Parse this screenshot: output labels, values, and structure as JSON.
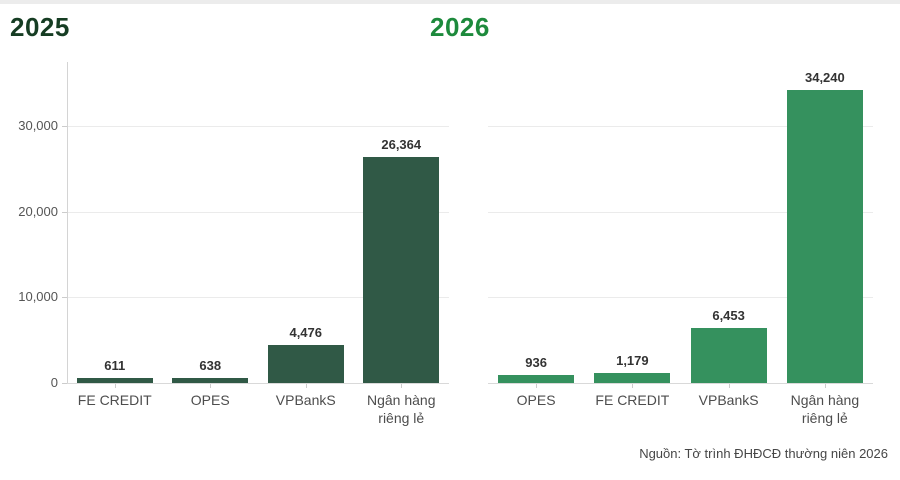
{
  "page": {
    "background": "#ffffff",
    "top_strip_color": "#ececec"
  },
  "source": {
    "label": "Nguồn: Tờ trình ĐHĐCĐ thường niên 2026"
  },
  "chart_data": {
    "type": "bar",
    "layout": "two side-by-side panels (small multiples), shared y axis labeled on left panel only",
    "ylim": [
      0,
      37500
    ],
    "yticks": [
      0,
      10000,
      20000,
      30000
    ],
    "ytick_labels": [
      "0",
      "10,000",
      "20,000",
      "30,000"
    ],
    "grid": true,
    "panels": [
      {
        "title": "2025",
        "title_color": "#163d23",
        "bar_color": "#305946",
        "categories": [
          "FE CREDIT",
          "OPES",
          "VPBankS",
          "Ngân hàng riêng lẻ"
        ],
        "values": [
          611,
          638,
          4476,
          26364
        ],
        "value_labels": [
          "611",
          "638",
          "4,476",
          "26,364"
        ]
      },
      {
        "title": "2026",
        "title_color": "#1d8a3c",
        "bar_color": "#35915e",
        "categories": [
          "OPES",
          "FE CREDIT",
          "VPBankS",
          "Ngân hàng riêng lẻ"
        ],
        "values": [
          936,
          1179,
          6453,
          34240
        ],
        "value_labels": [
          "936",
          "1,179",
          "6,453",
          "34,240"
        ]
      }
    ],
    "style": {
      "gridline_color": "#ebebeb",
      "baseline_color": "#d9d9d9",
      "axis_line_color": "#d4d4d4",
      "ytick_label_color": "#555555",
      "value_label_color": "#333333",
      "category_label_color": "#4d4d4d"
    }
  }
}
